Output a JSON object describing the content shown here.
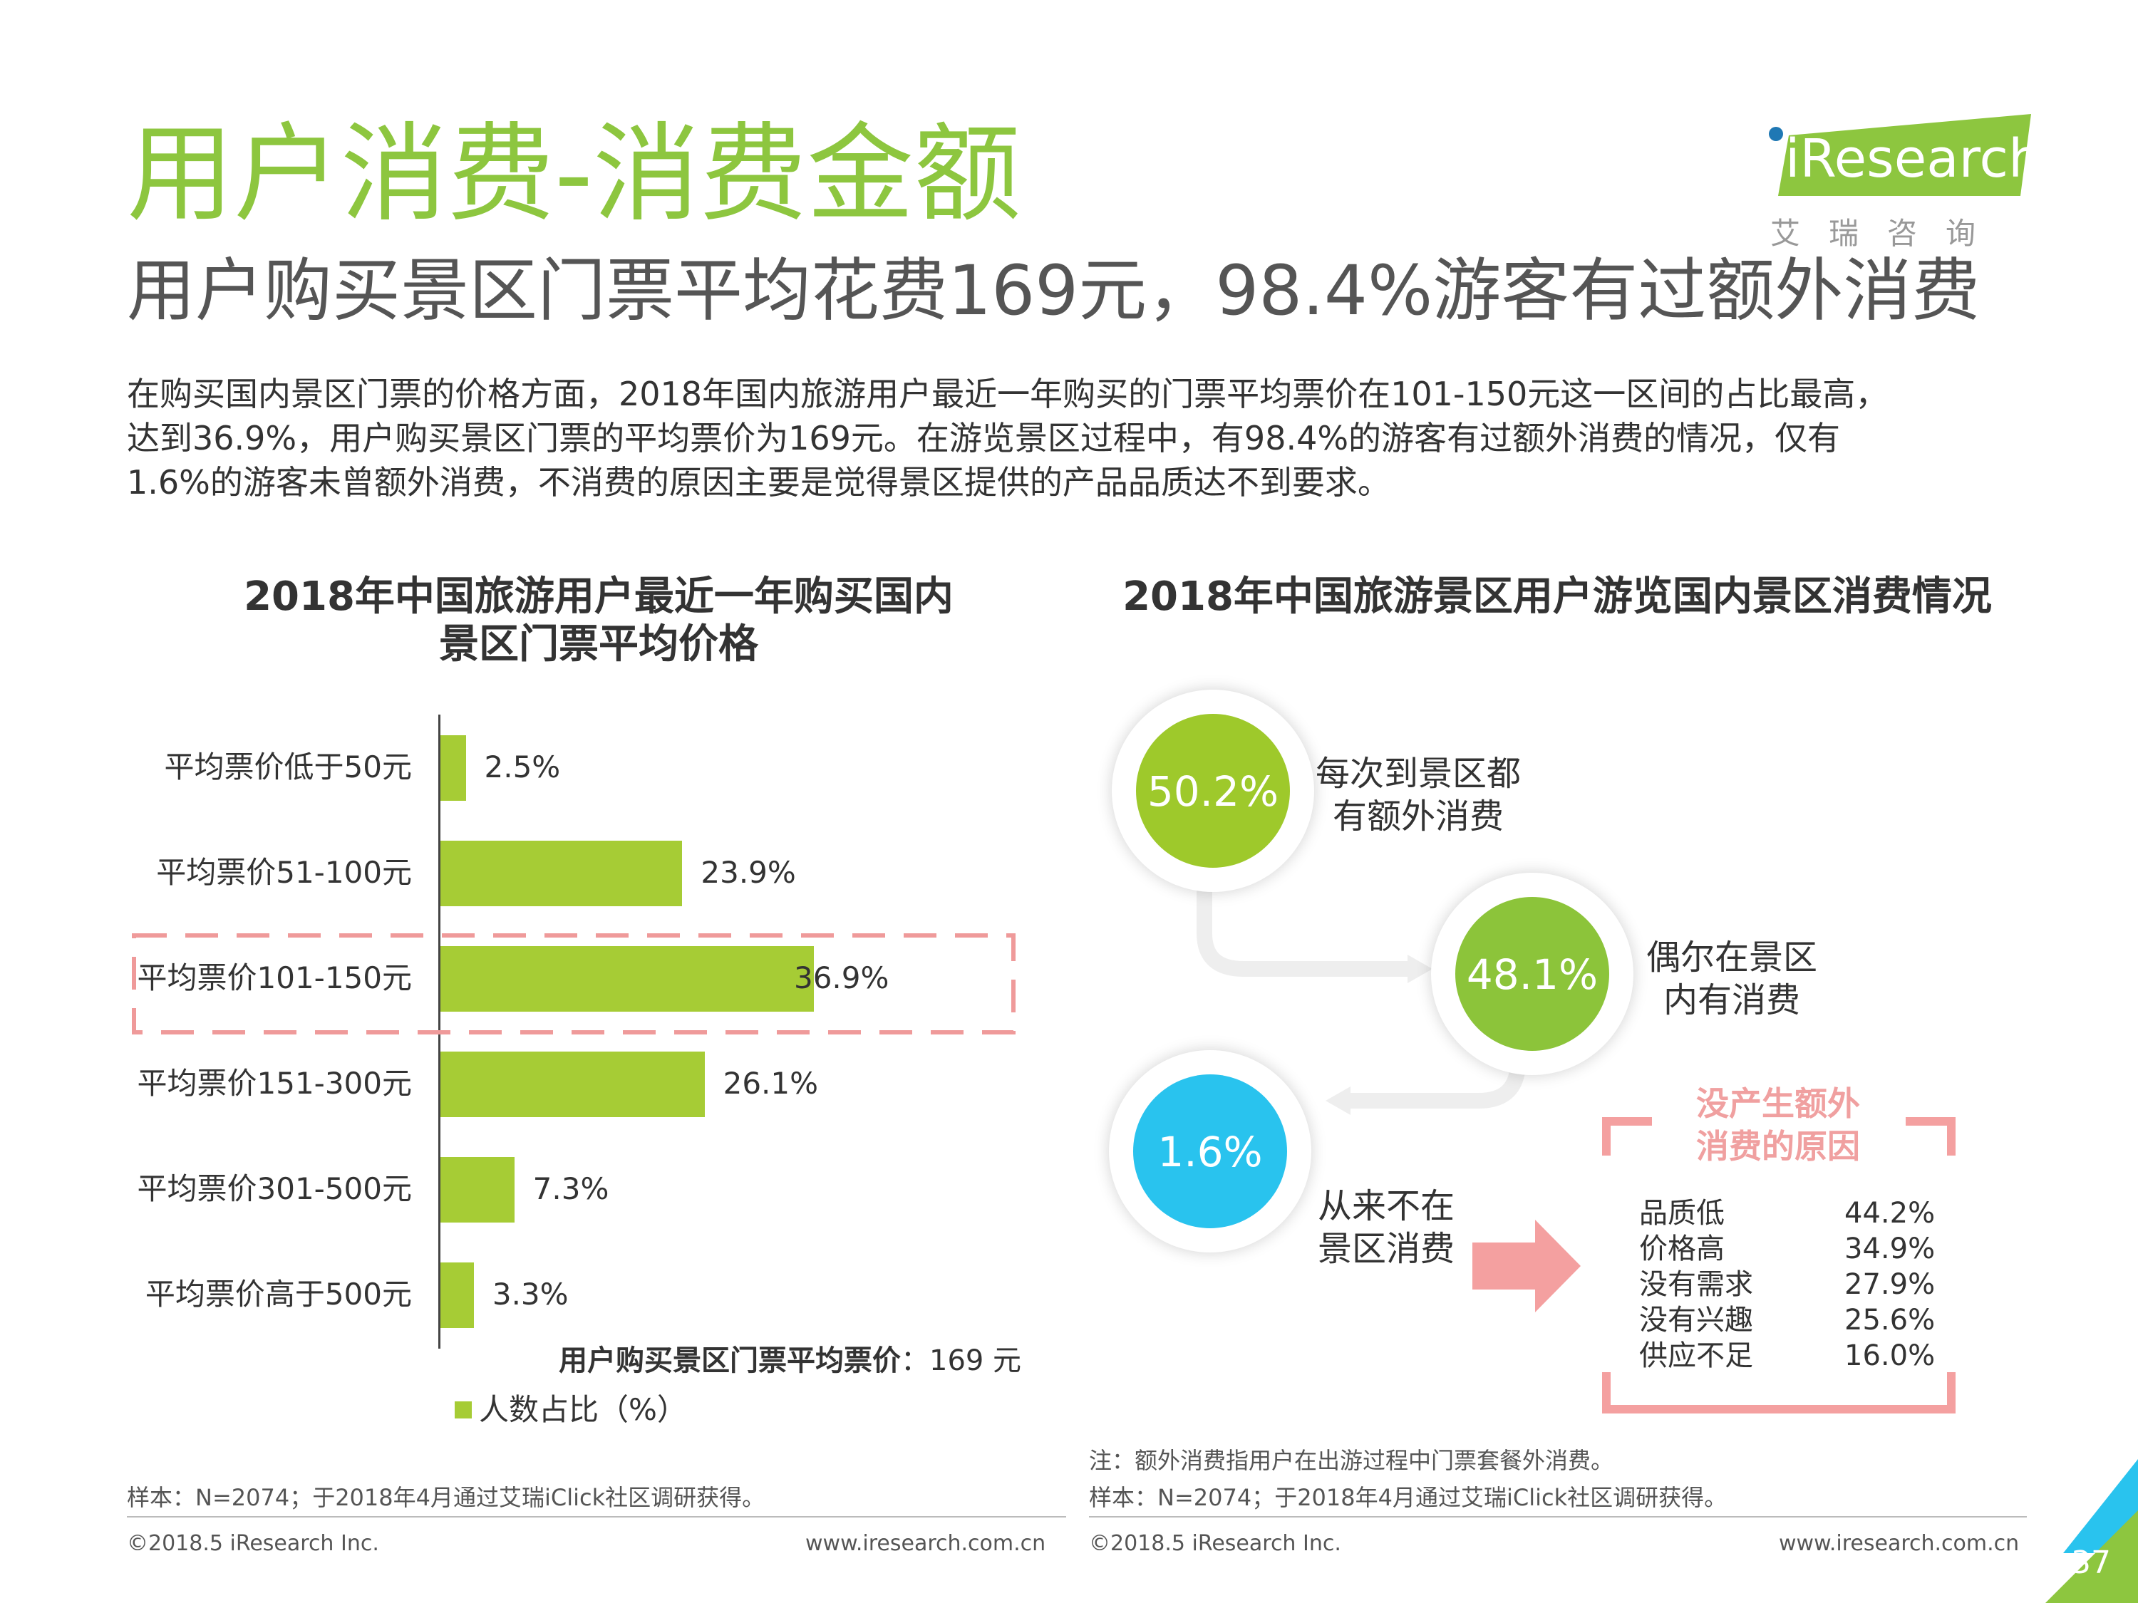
{
  "header": {
    "title": "用户消费-消费金额",
    "subtitle": "用户购买景区门票平均花费169元，98.4%游客有过额外消费",
    "intro_lines": [
      "在购买国内景区门票的价格方面，2018年国内旅游用户最近一年购买的门票平均票价在101-150元这一区间的占比最高，",
      "达到36.9%，用户购买景区门票的平均票价为169元。在游览景区过程中，有98.4%的游客有过额外消费的情况，仅有",
      "1.6%的游客未曾额外消费，不消费的原因主要是觉得景区提供的产品品质达不到要求。"
    ]
  },
  "logo": {
    "brand": "iResearch",
    "sub": "艾瑞咨询",
    "color": "#8dc63f"
  },
  "left_chart": {
    "title_lines": [
      "2018年中国旅游用户最近一年购买国内",
      "景区门票平均价格"
    ],
    "avg_label": "用户购买景区门票平均票价",
    "avg_value": "：169 元",
    "legend": "人数占比（%）",
    "value_labels": [
      "2.5%",
      "23.9%",
      "36.9%",
      "26.1%",
      "7.3%",
      "3.3%"
    ]
  },
  "right_chart": {
    "title": "2018年中国旅游景区用户游览国内景区消费情况",
    "bubbles": [
      {
        "value": "50.2%",
        "label_lines": [
          "每次到景区都",
          "有额外消费"
        ],
        "color": "#9ec92b"
      },
      {
        "value": "48.1%",
        "label_lines": [
          "偶尔在景区",
          "内有消费"
        ],
        "color": "#8cc43a"
      },
      {
        "value": "1.6%",
        "label_lines": [
          "从来不在",
          "景区消费"
        ],
        "color": "#29c3ee"
      }
    ],
    "reasons_title": [
      "没产生额外",
      "消费的原因"
    ],
    "reasons": [
      {
        "name": "品质低",
        "value": "44.2%"
      },
      {
        "name": "价格高",
        "value": "34.9%"
      },
      {
        "name": "没有需求",
        "value": "27.9%"
      },
      {
        "name": "没有兴趣",
        "value": "25.6%"
      },
      {
        "name": "供应不足",
        "value": "16.0%"
      }
    ]
  },
  "chart_data": [
    {
      "type": "bar",
      "orientation": "horizontal",
      "title": "2018年中国旅游用户最近一年购买国内景区门票平均价格",
      "categories": [
        "平均票价低于50元",
        "平均票价51-100元",
        "平均票价101-150元",
        "平均票价151-300元",
        "平均票价301-500元",
        "平均票价高于500元"
      ],
      "series": [
        {
          "name": "人数占比（%）",
          "values": [
            2.5,
            23.9,
            36.9,
            26.1,
            7.3,
            3.3
          ]
        }
      ],
      "highlight": "平均票价101-150元",
      "xlim": [
        0,
        40
      ],
      "grid": false,
      "legend": "bottom"
    },
    {
      "type": "table",
      "title": "2018年中国旅游景区用户游览国内景区消费情况",
      "consumption": [
        {
          "label": "每次到景区都有额外消费",
          "value": 50.2
        },
        {
          "label": "偶尔在景区内有消费",
          "value": 48.1
        },
        {
          "label": "从来不在景区消费",
          "value": 1.6
        }
      ],
      "no_consumption_reasons": [
        {
          "label": "品质低",
          "value": 44.2
        },
        {
          "label": "价格高",
          "value": 34.9
        },
        {
          "label": "没有需求",
          "value": 27.9
        },
        {
          "label": "没有兴趣",
          "value": 25.6
        },
        {
          "label": "供应不足",
          "value": 16.0
        }
      ]
    }
  ],
  "footer": {
    "left_sample": "样本：N=2074；于2018年4月通过艾瑞iClick社区调研获得。",
    "right_note": "注：额外消费指用户在出游过程中门票套餐外消费。",
    "right_sample": "样本：N=2074；于2018年4月通过艾瑞iClick社区调研获得。",
    "copyright": "©2018.5 iResearch Inc.",
    "website": "www.iresearch.com.cn",
    "page_number": "37"
  }
}
